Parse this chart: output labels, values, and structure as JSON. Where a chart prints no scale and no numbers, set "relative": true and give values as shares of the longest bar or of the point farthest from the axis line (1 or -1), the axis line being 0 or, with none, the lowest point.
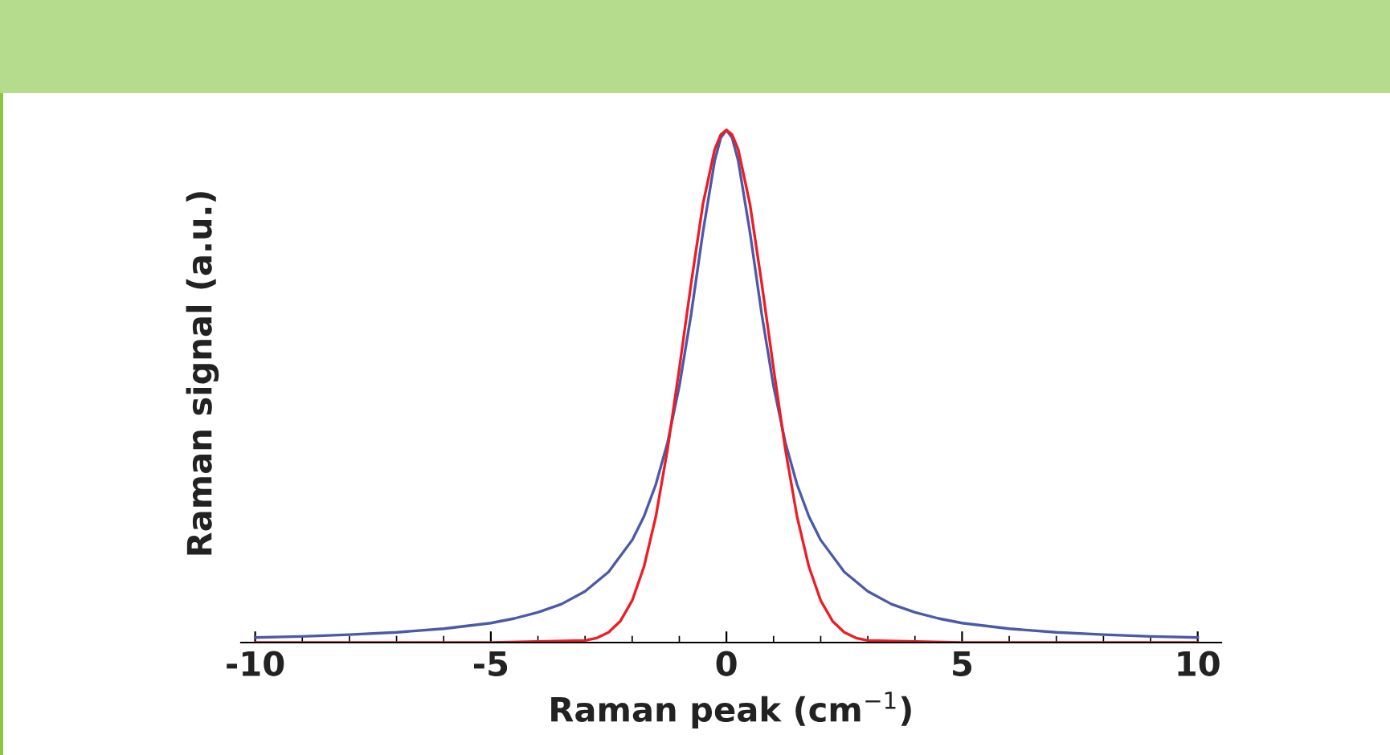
{
  "chart_data": {
    "type": "line",
    "relative": true,
    "xlabel": "Raman peak (cm$^{−1}$)",
    "ylabel": "Raman signal (a.u.)",
    "xlim": [
      -10.3,
      10.5
    ],
    "xticks": [
      -10,
      -5,
      0,
      5,
      10
    ],
    "grid": false,
    "marker": "none",
    "line_style": "solid",
    "series": [
      {
        "color": "#4b5aa8",
        "x": [
          -10,
          -9,
          -8,
          -7,
          -6,
          -5,
          -4.5,
          -4,
          -3.5,
          -3,
          -2.5,
          -2,
          -1.75,
          -1.5,
          -1.25,
          -1,
          -0.75,
          -0.5,
          -0.25,
          -0.12,
          0,
          0.12,
          0.25,
          0.5,
          0.75,
          1,
          1.25,
          1.5,
          1.75,
          2,
          2.5,
          3,
          3.5,
          4,
          4.5,
          5,
          6,
          7,
          8,
          9,
          10
        ],
        "values": [
          0.0099,
          0.012,
          0.0154,
          0.02,
          0.027,
          0.038,
          0.047,
          0.059,
          0.075,
          0.1,
          0.138,
          0.2,
          0.246,
          0.308,
          0.39,
          0.5,
          0.64,
          0.8,
          0.94,
          0.985,
          1,
          0.985,
          0.94,
          0.8,
          0.64,
          0.5,
          0.39,
          0.308,
          0.246,
          0.2,
          0.138,
          0.1,
          0.075,
          0.059,
          0.047,
          0.038,
          0.027,
          0.02,
          0.0154,
          0.012,
          0.0099
        ]
      },
      {
        "color": "#ee1c25",
        "x": [
          -10,
          -5,
          -3,
          -2.75,
          -2.5,
          -2.25,
          -2,
          -1.75,
          -1.5,
          -1.25,
          -1,
          -0.75,
          -0.5,
          -0.25,
          -0.12,
          0,
          0.12,
          0.25,
          0.5,
          0.75,
          1,
          1.25,
          1.5,
          1.75,
          2,
          2.25,
          2.5,
          2.75,
          3,
          5,
          10
        ],
        "values": [
          0,
          0,
          0.004,
          0.009,
          0.02,
          0.042,
          0.082,
          0.148,
          0.245,
          0.377,
          0.535,
          0.7,
          0.855,
          0.962,
          0.991,
          1,
          0.991,
          0.962,
          0.855,
          0.7,
          0.535,
          0.377,
          0.245,
          0.148,
          0.082,
          0.042,
          0.02,
          0.009,
          0.004,
          0,
          0
        ]
      }
    ]
  }
}
